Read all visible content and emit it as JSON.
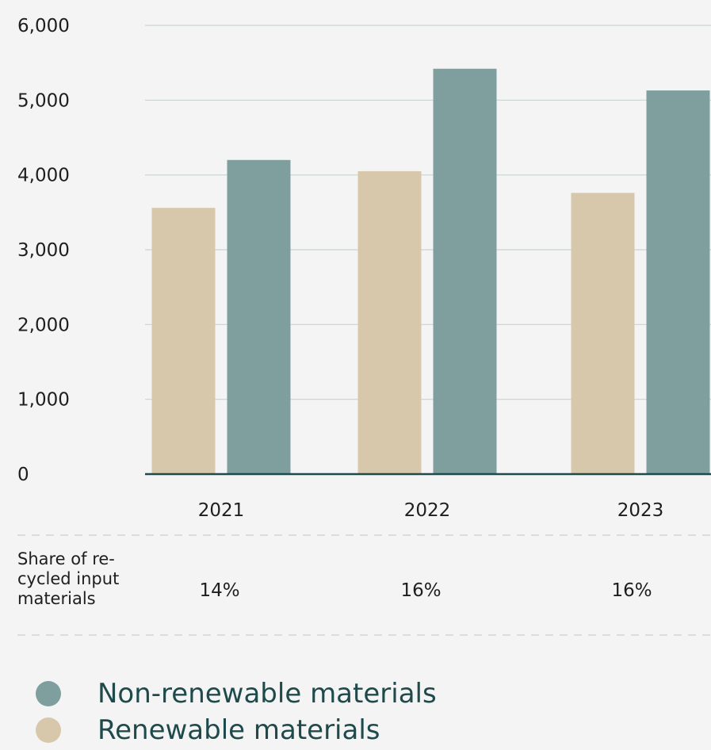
{
  "chart_data": {
    "type": "bar",
    "categories": [
      "2021",
      "2022",
      "2023"
    ],
    "series": [
      {
        "name": "Renewable materials",
        "color": "#d8c8ab",
        "values": [
          3560,
          4050,
          3760
        ]
      },
      {
        "name": "Non-renewable materials",
        "color": "#7f9f9f",
        "values": [
          4200,
          5420,
          5130
        ]
      }
    ],
    "ylim": [
      0,
      6000
    ],
    "yticks": [
      "0",
      "1,000",
      "2,000",
      "3,000",
      "4,000",
      "5,000",
      "6,000"
    ],
    "ytick_values": [
      0,
      1000,
      2000,
      3000,
      4000,
      5000,
      6000
    ],
    "grid": true,
    "legend_position": "bottom"
  },
  "share": {
    "caption_lines": [
      "Share of re-",
      "cycled input",
      "materials"
    ],
    "values": [
      "14%",
      "16%",
      "16%"
    ]
  },
  "legend": [
    {
      "label": "Non-renewable materials",
      "color": "#7f9f9f"
    },
    {
      "label": "Renewable materials",
      "color": "#d8c8ab"
    }
  ]
}
